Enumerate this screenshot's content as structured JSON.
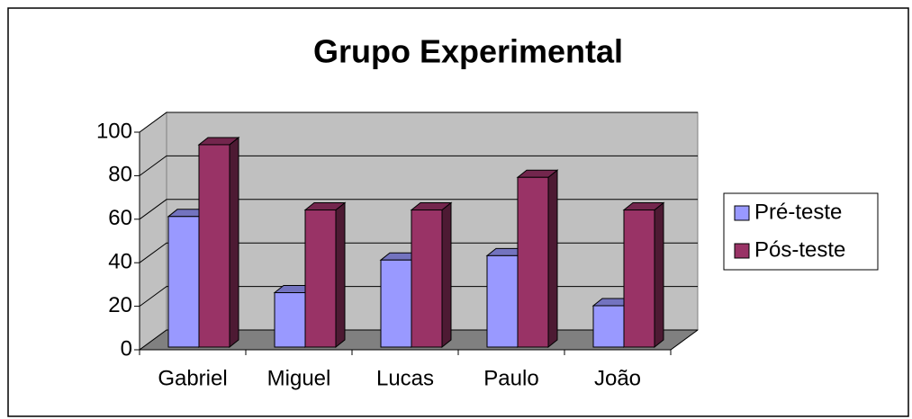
{
  "chart_data": {
    "type": "bar3d",
    "title": "Grupo Experimental",
    "categories": [
      "Gabriel",
      "Miguel",
      "Lucas",
      "Paulo",
      "João"
    ],
    "series": [
      {
        "name": "Pré-teste",
        "color": "#9999ff",
        "values": [
          60,
          25,
          40,
          42,
          19
        ]
      },
      {
        "name": "Pós-teste",
        "color": "#993366",
        "values": [
          93,
          63,
          63,
          78,
          63
        ]
      }
    ],
    "ylim": [
      0,
      100
    ],
    "yticks": [
      0,
      20,
      40,
      60,
      80,
      100
    ],
    "grid": true,
    "legend": "right"
  }
}
